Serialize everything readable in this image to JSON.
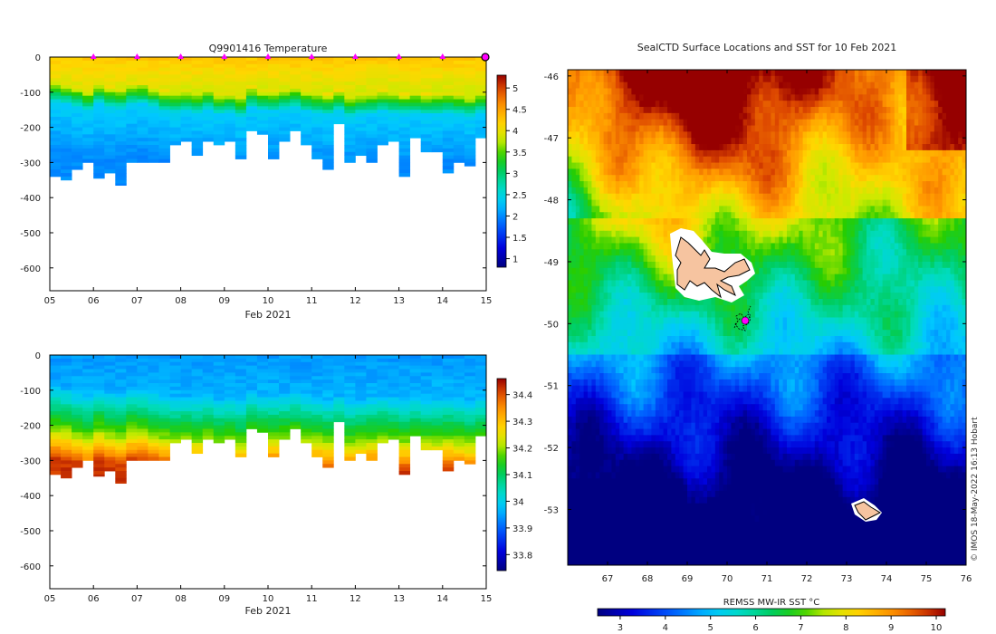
{
  "credit": "© IMOS 18-May-2022 16:13 Hobart",
  "colors": {
    "land": "#f6c4a0",
    "float_marker": "#ff00ff",
    "track": "#000000"
  },
  "chart_data": [
    {
      "type": "heatmap",
      "id": "temperature",
      "title": "Q9901416  Temperature",
      "xlabel": "Feb 2021",
      "xlim": [
        5,
        15
      ],
      "x_ticks": [
        5,
        6,
        7,
        8,
        9,
        10,
        11,
        12,
        13,
        14,
        15
      ],
      "x_tick_labels": [
        "05",
        "06",
        "07",
        "08",
        "09",
        "10",
        "11",
        "12",
        "13",
        "14",
        "15"
      ],
      "ylim": [
        -665,
        0
      ],
      "y_ticks": [
        0,
        -100,
        -200,
        -300,
        -400,
        -500,
        -600
      ],
      "colorbar": {
        "min": 0.8,
        "max": 5.3,
        "ticks": [
          1,
          1.5,
          2,
          2.5,
          3,
          3.5,
          4,
          4.5,
          5
        ],
        "tick_labels": [
          "1",
          "1.5",
          "2",
          "2.5",
          "3",
          "3.5",
          "4",
          "4.5",
          "5"
        ]
      },
      "surface_markers_days": [
        6,
        7,
        8,
        9,
        10,
        11,
        12,
        13,
        14
      ],
      "last_marker_day": 15,
      "profile_days": [
        5.0,
        5.25,
        5.5,
        5.75,
        6.0,
        6.25,
        6.5,
        6.75,
        7.0,
        7.25,
        7.5,
        7.75,
        8.0,
        8.25,
        8.5,
        8.75,
        9.0,
        9.25,
        9.5,
        9.75,
        10.0,
        10.25,
        10.5,
        10.75,
        11.0,
        11.25,
        11.5,
        11.75,
        12.0,
        12.25,
        12.5,
        12.75,
        13.0,
        13.25,
        13.5,
        13.75,
        14.0,
        14.25,
        14.5,
        14.75,
        15.0
      ],
      "profile_max_depth": [
        340,
        350,
        320,
        300,
        345,
        330,
        365,
        300,
        300,
        300,
        300,
        250,
        240,
        280,
        240,
        250,
        240,
        290,
        210,
        220,
        290,
        240,
        210,
        250,
        290,
        320,
        190,
        300,
        280,
        300,
        250,
        240,
        340,
        230,
        270,
        270,
        330,
        300,
        310,
        230,
        350
      ],
      "profile_thermocline": [
        95,
        100,
        110,
        120,
        100,
        110,
        115,
        100,
        100,
        110,
        120,
        125,
        120,
        125,
        115,
        130,
        125,
        135,
        110,
        120,
        120,
        115,
        110,
        120,
        125,
        130,
        120,
        135,
        130,
        125,
        120,
        125,
        130,
        125,
        130,
        130,
        125,
        130,
        135,
        125,
        130
      ]
    },
    {
      "type": "heatmap",
      "id": "salinity",
      "title": "",
      "xlabel": "Feb 2021",
      "xlim": [
        5,
        15
      ],
      "x_ticks": [
        5,
        6,
        7,
        8,
        9,
        10,
        11,
        12,
        13,
        14,
        15
      ],
      "x_tick_labels": [
        "05",
        "06",
        "07",
        "08",
        "09",
        "10",
        "11",
        "12",
        "13",
        "14",
        "15"
      ],
      "ylim": [
        -665,
        0
      ],
      "y_ticks": [
        0,
        -100,
        -200,
        -300,
        -400,
        -500,
        -600
      ],
      "colorbar": {
        "min": 33.74,
        "max": 34.46,
        "ticks": [
          33.8,
          33.9,
          34,
          34.1,
          34.2,
          34.3,
          34.4
        ],
        "tick_labels": [
          "33.8",
          "33.9",
          "34",
          "34.1",
          "34.2",
          "34.3",
          "34.4"
        ]
      }
    },
    {
      "type": "heatmap",
      "id": "sst_map",
      "title": "SealCTD Surface Locations and SST for 10 Feb 2021",
      "xlim": [
        66,
        76
      ],
      "x_ticks": [
        67,
        68,
        69,
        70,
        71,
        72,
        73,
        74,
        75,
        76
      ],
      "x_tick_labels": [
        "67",
        "68",
        "69",
        "70",
        "71",
        "72",
        "73",
        "74",
        "75",
        "76"
      ],
      "ylim": [
        -53.9,
        -45.9
      ],
      "y_ticks": [
        -46,
        -47,
        -48,
        -49,
        -50,
        -51,
        -52,
        -53
      ],
      "y_tick_labels": [
        "-46",
        "-47",
        "-48",
        "-49",
        "-50",
        "-51",
        "-52",
        "-53"
      ],
      "colorbar": {
        "label": "REMSS MW-IR SST °C",
        "min": 2.5,
        "max": 10.2,
        "ticks": [
          3,
          4,
          5,
          6,
          7,
          8,
          9,
          10
        ],
        "tick_labels": [
          "3",
          "4",
          "5",
          "6",
          "7",
          "8",
          "9",
          "10"
        ]
      },
      "islands": [
        "Kerguelen Islands",
        "Heard Island"
      ],
      "float_location": {
        "lon": 70.5,
        "lat": -50.05
      }
    }
  ]
}
